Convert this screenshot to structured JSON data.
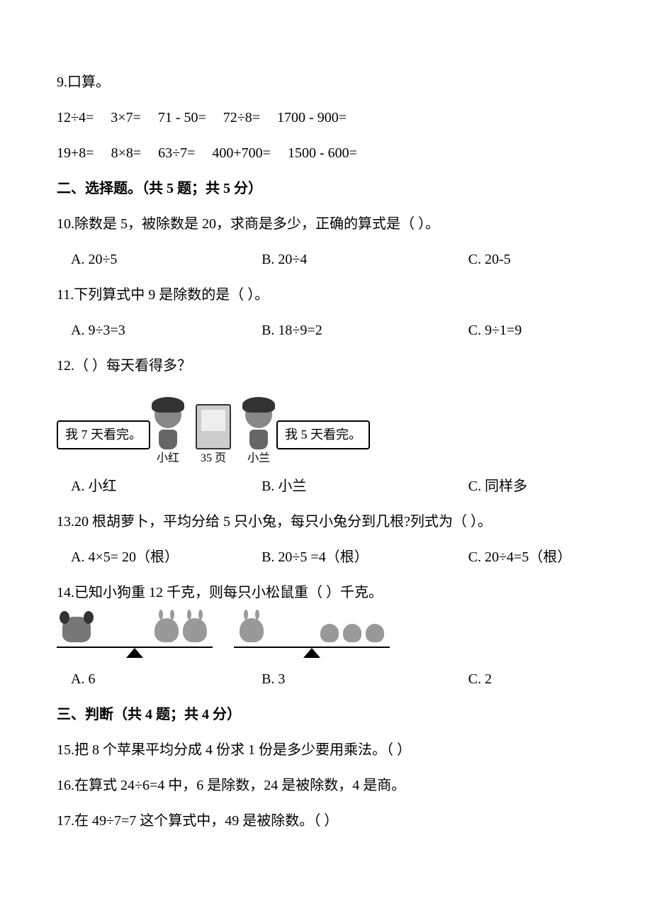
{
  "colors": {
    "text": "#000000",
    "bg": "#ffffff"
  },
  "q9": {
    "title": "9.口算。",
    "row1": [
      "12÷4=",
      "3×7=",
      "71 - 50=",
      "72÷8=",
      "1700 - 900="
    ],
    "row2": [
      "19+8=",
      "8×8=",
      "63÷7=",
      "400+700=",
      "1500 - 600="
    ]
  },
  "section2": "二、选择题。（共 5 题；共 5 分）",
  "q10": {
    "text": "10.除数是 5，被除数是 20，求商是多少，正确的算式是（   ）。",
    "a": "A. 20÷5",
    "b": "B. 20÷4",
    "c": "C. 20-5"
  },
  "q11": {
    "text": "11.下列算式中 9 是除数的是（   ）。",
    "a": "A. 9÷3=3",
    "b": "B. 18÷9=2",
    "c": "C. 9÷1=9"
  },
  "q12": {
    "text": "12.（   ）每天看得多？",
    "speech1": "我 7 天看完。",
    "name1": "小红",
    "pages": "35 页",
    "name2": "小兰",
    "speech2": "我 5 天看完。",
    "a": "A. 小红",
    "b": "B. 小兰",
    "c": "C. 同样多"
  },
  "q13": {
    "text": "13.20 根胡萝卜，平均分给 5 只小兔，每只小兔分到几根?列式为（   ）。",
    "a": "A. 4×5= 20（根）",
    "b": "B. 20÷5 =4（根）",
    "c": "C. 20÷4=5（根）"
  },
  "q14": {
    "text": "14.已知小狗重 12 千克，则每只小松鼠重（   ）千克。",
    "a": "A. 6",
    "b": "B. 3",
    "c": "C. 2"
  },
  "section3": "三、判断（共 4 题；共 4 分）",
  "q15": "15.把 8 个苹果平均分成 4 份求 1 份是多少要用乘法。（    ）",
  "q16": "16.在算式 24÷6=4 中，6 是除数，24 是被除数，4 是商。",
  "q17": "17.在 49÷7=7 这个算式中，49 是被除数。（   ）"
}
